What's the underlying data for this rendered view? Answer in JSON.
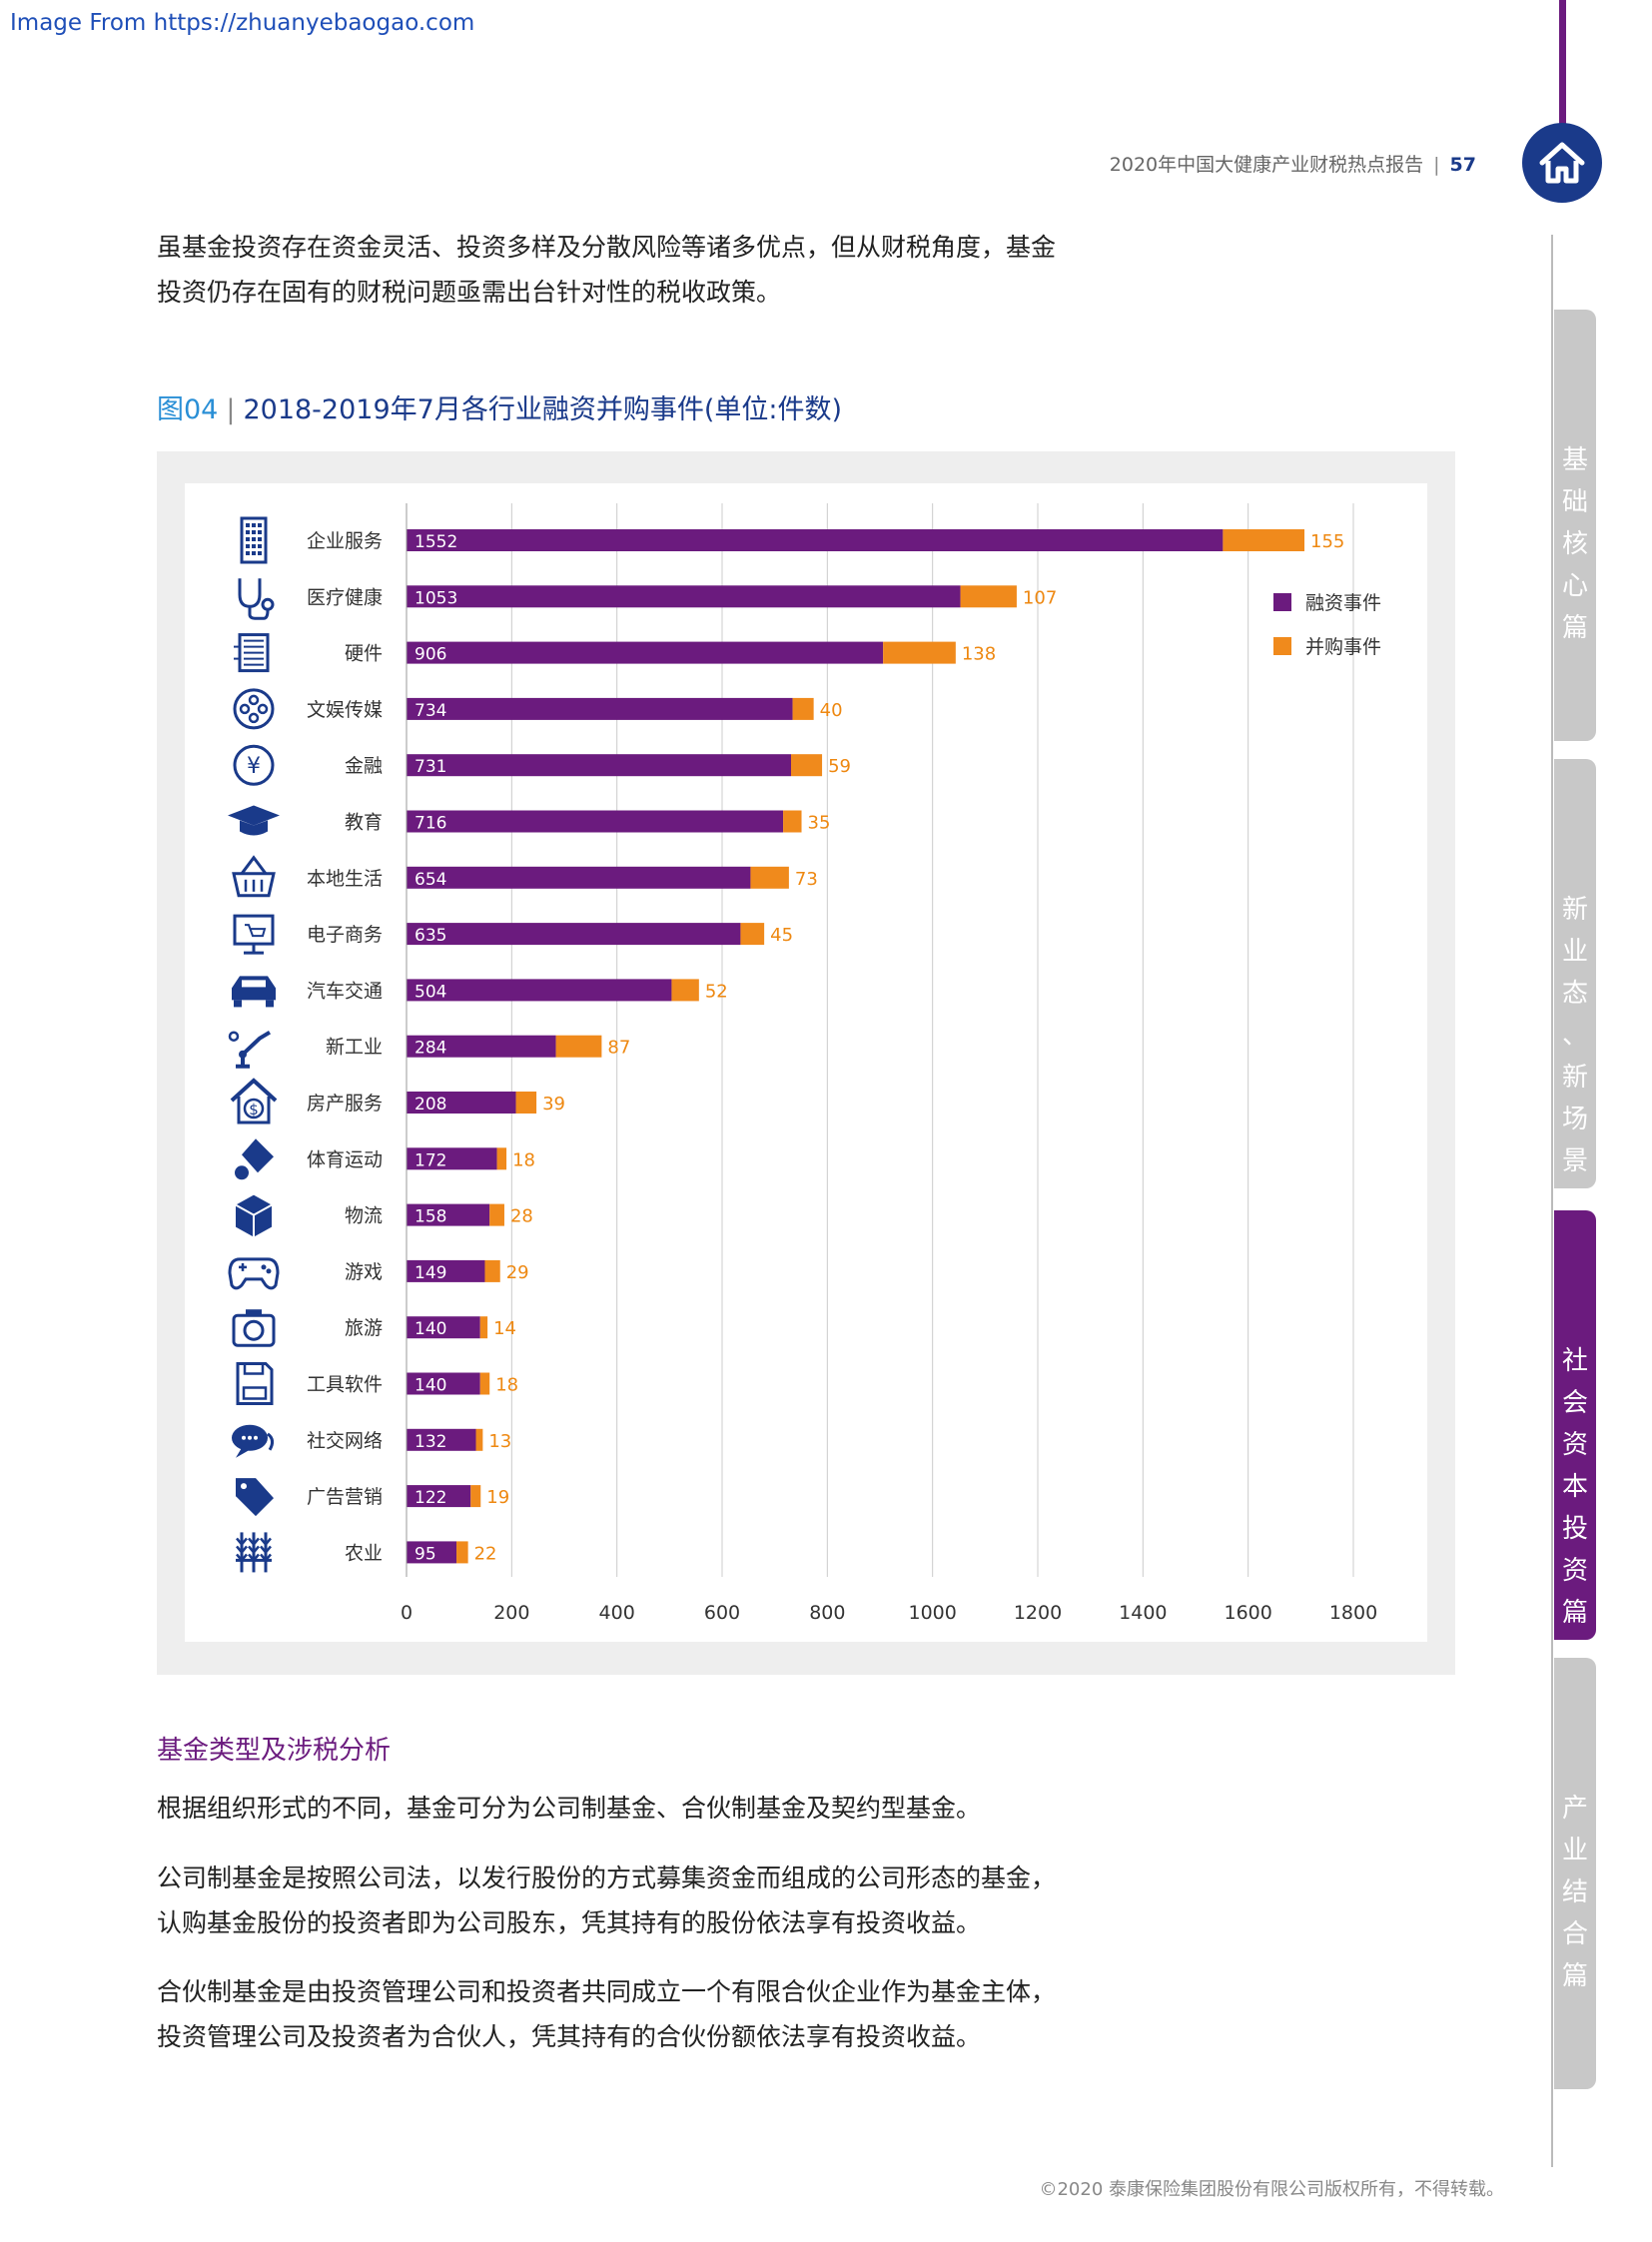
{
  "watermark": "Image From https://zhuanyebaogao.com",
  "header": {
    "report_title": "2020年中国大健康产业财税热点报告",
    "page_number": "57"
  },
  "side_tabs": [
    {
      "label": "基础核心篇",
      "active": false
    },
    {
      "label": "新业态、新场景篇",
      "active": false
    },
    {
      "label": "社会资本投资篇",
      "active": true
    },
    {
      "label": "产业结合篇",
      "active": false
    }
  ],
  "intro": {
    "line1": "虽基金投资存在资金灵活、投资多样及分散风险等诸多优点，但从财税角度，基金",
    "line2": "投资仍存在固有的财税问题亟需出台针对性的税收政策。"
  },
  "figure": {
    "number": "图04",
    "title": "2018-2019年7月各行业融资并购事件(单位:件数)"
  },
  "chart_data": {
    "type": "bar",
    "orientation": "horizontal",
    "stacked": true,
    "categories": [
      "企业服务",
      "医疗健康",
      "硬件",
      "文娱传媒",
      "金融",
      "教育",
      "本地生活",
      "电子商务",
      "汽车交通",
      "新工业",
      "房产服务",
      "体育运动",
      "物流",
      "游戏",
      "旅游",
      "工具软件",
      "社交网络",
      "广告营销",
      "农业"
    ],
    "category_icons": [
      "building-icon",
      "stethoscope-icon",
      "hardware-icon",
      "film-reel-icon",
      "yuan-coin-icon",
      "graduation-cap-icon",
      "basket-icon",
      "ecommerce-screen-icon",
      "car-icon",
      "robot-arm-icon",
      "house-dollar-icon",
      "shuttlecock-icon",
      "box-icon",
      "gamepad-icon",
      "camera-icon",
      "floppy-disk-icon",
      "chat-bubbles-icon",
      "sale-tag-icon",
      "wheat-icon"
    ],
    "series": [
      {
        "name": "融资事件",
        "color": "#6b1b7e",
        "values": [
          1552,
          1053,
          906,
          734,
          731,
          716,
          654,
          635,
          504,
          284,
          208,
          172,
          158,
          149,
          140,
          140,
          132,
          122,
          95
        ]
      },
      {
        "name": "并购事件",
        "color": "#f08a1c",
        "values": [
          155,
          107,
          138,
          40,
          59,
          35,
          73,
          45,
          52,
          87,
          39,
          18,
          28,
          29,
          14,
          18,
          13,
          19,
          22
        ]
      }
    ],
    "x_ticks": [
      0,
      200,
      400,
      600,
      800,
      1000,
      1200,
      1400,
      1600,
      1800
    ],
    "xlim": [
      0,
      1800
    ],
    "grid": "vertical",
    "legend": "top-right"
  },
  "section": {
    "title": "基金类型及涉税分析"
  },
  "body": {
    "p1": "根据组织形式的不同，基金可分为公司制基金、合伙制基金及契约型基金。",
    "p2_line1": "公司制基金是按照公司法，以发行股份的方式募集资金而组成的公司形态的基金，",
    "p2_line2": "认购基金股份的投资者即为公司股东，凭其持有的股份依法享有投资收益。",
    "p3_line1": "合伙制基金是由投资管理公司和投资者共同成立一个有限合伙企业作为基金主体，",
    "p3_line2": "投资管理公司及投资者为合伙人，凭其持有的合伙份额依法享有投资收益。"
  },
  "footer": {
    "copyright": "©2020 泰康保险集团股份有限公司版权所有，不得转载。"
  }
}
